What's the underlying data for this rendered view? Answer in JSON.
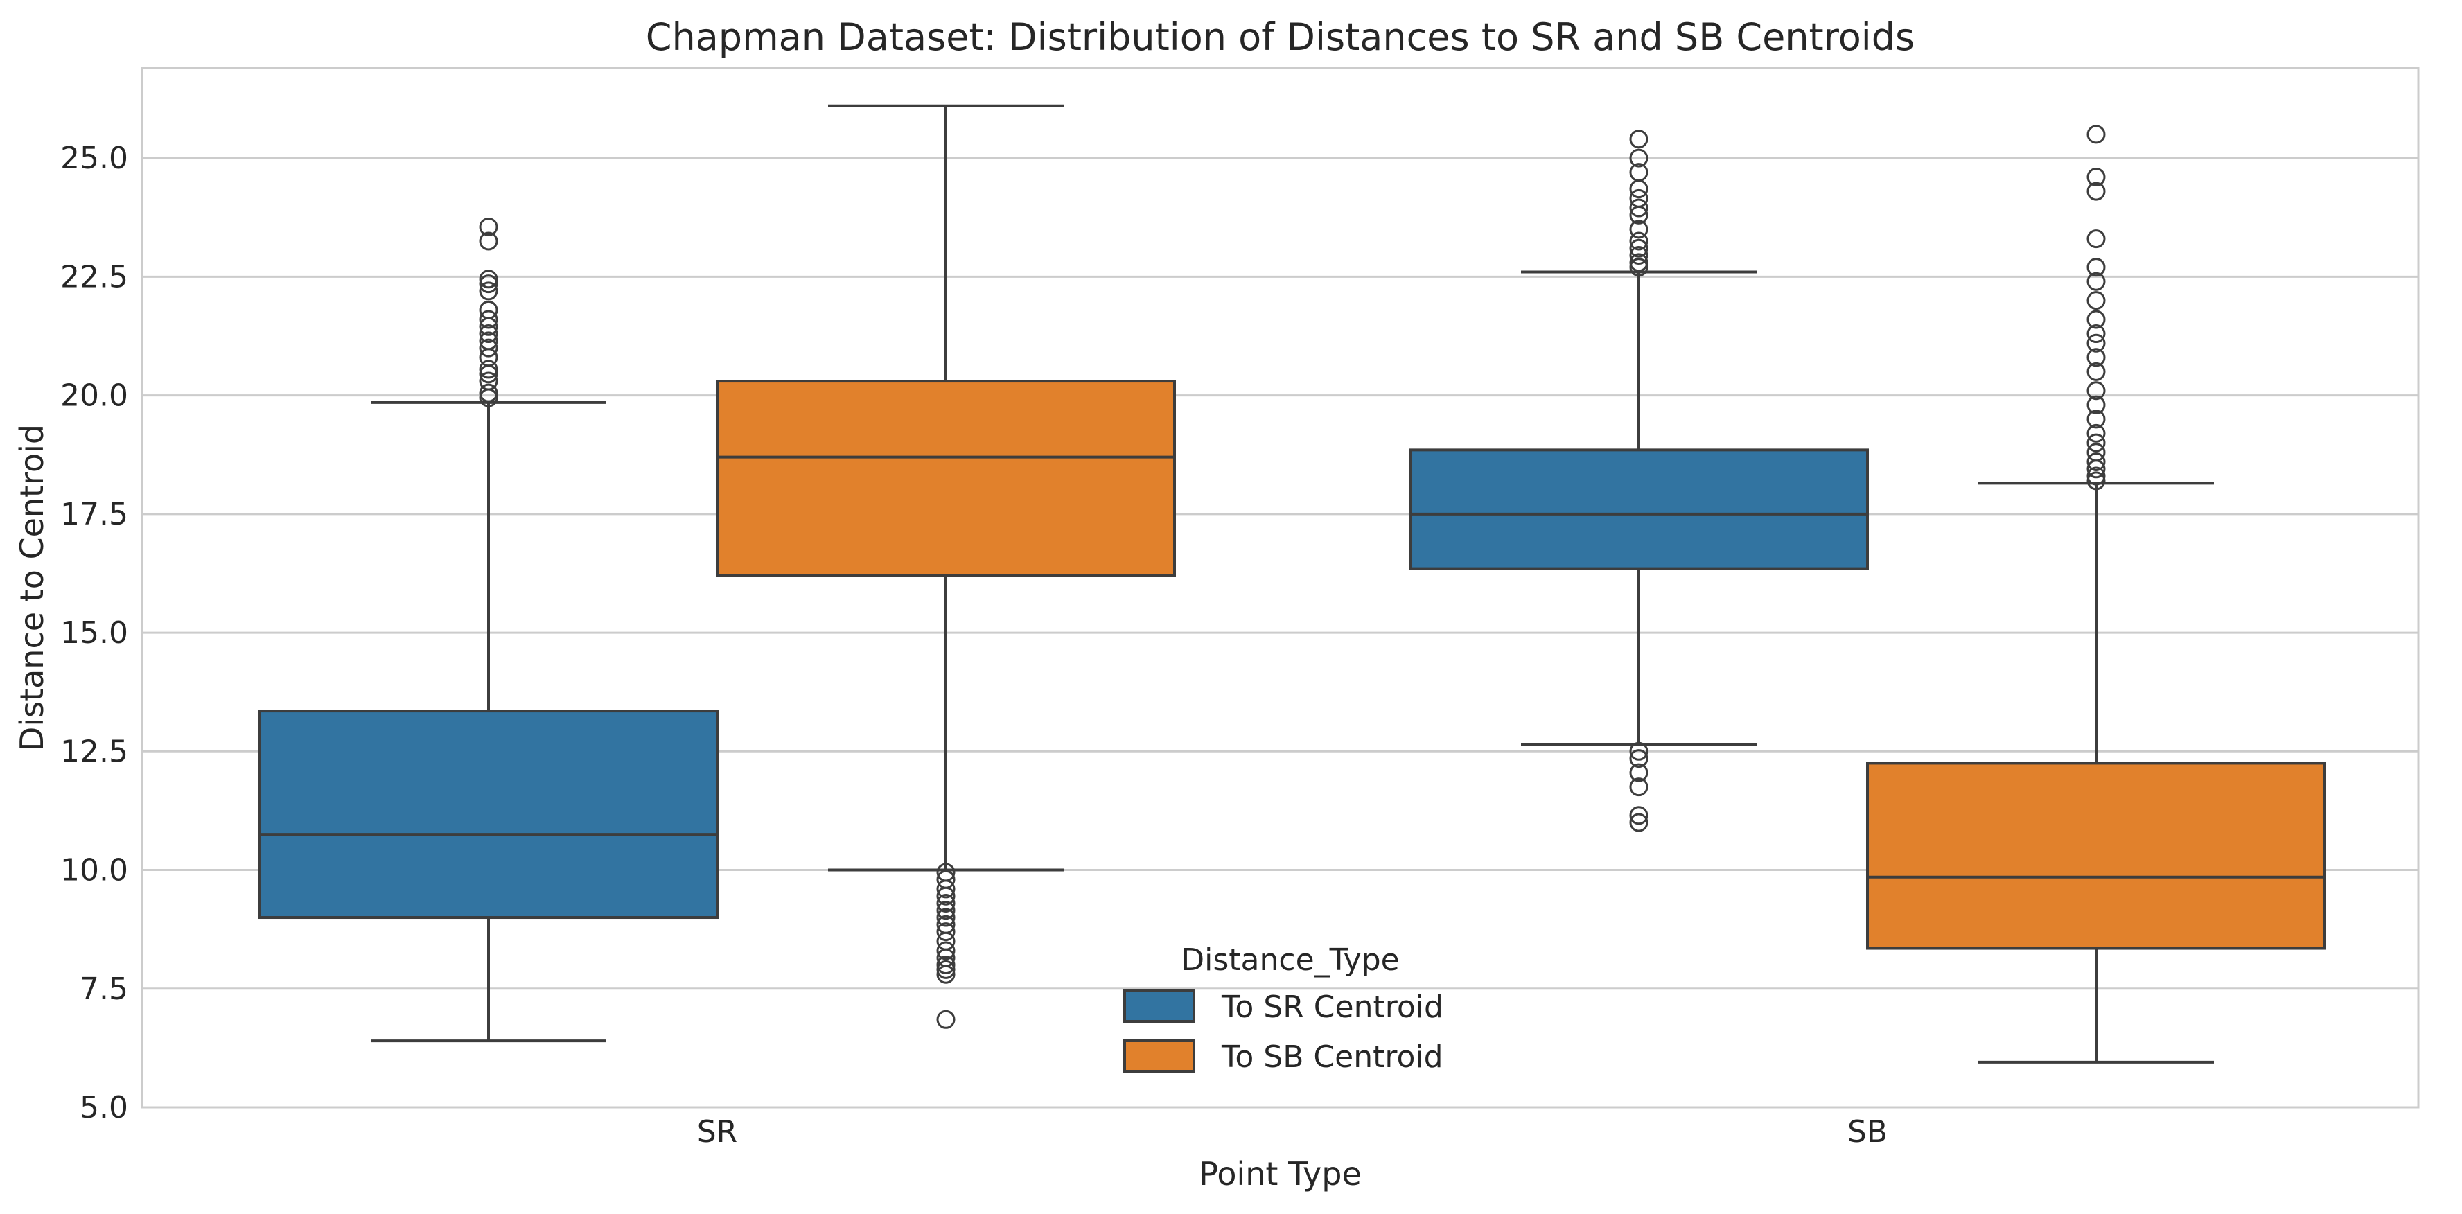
{
  "chart_data": {
    "type": "box",
    "title": "Chapman Dataset: Distribution of Distances to SR and SB Centroids",
    "xlabel": "Point Type",
    "ylabel": "Distance to Centroid",
    "ylim": [
      5.0,
      26.9
    ],
    "yticks": [
      "5.0",
      "7.5",
      "10.0",
      "12.5",
      "15.0",
      "17.5",
      "20.0",
      "22.5",
      "25.0"
    ],
    "categories": [
      "SR",
      "SB"
    ],
    "grid": "horizontal",
    "legend": {
      "title": "Distance_Type",
      "placement": "lower-center"
    },
    "series": [
      {
        "name": "To SR Centroid",
        "color": "#3274a1",
        "boxes": [
          {
            "category": "SR",
            "whislo": 6.4,
            "q1": 9.0,
            "med": 10.75,
            "q3": 13.35,
            "whishi": 19.85,
            "fliers": [
              19.95,
              20.05,
              20.3,
              20.45,
              20.55,
              20.8,
              21.0,
              21.15,
              21.3,
              21.45,
              21.6,
              21.8,
              22.2,
              22.35,
              22.45,
              23.25,
              23.55
            ]
          },
          {
            "category": "SB",
            "whislo": 12.65,
            "q1": 16.35,
            "med": 17.5,
            "q3": 18.85,
            "whishi": 22.6,
            "fliers": [
              22.7,
              22.8,
              22.95,
              23.1,
              23.25,
              23.5,
              23.8,
              23.95,
              24.15,
              24.35,
              24.7,
              25.0,
              25.4,
              12.5,
              12.35,
              12.05,
              11.75,
              11.15,
              11.0
            ]
          }
        ]
      },
      {
        "name": "To SB Centroid",
        "color": "#e1812c",
        "boxes": [
          {
            "category": "SR",
            "whislo": 10.0,
            "q1": 16.2,
            "med": 18.7,
            "q3": 20.3,
            "whishi": 26.1,
            "fliers": [
              9.95,
              9.8,
              9.6,
              9.45,
              9.3,
              9.15,
              9.0,
              8.85,
              8.7,
              8.5,
              8.3,
              8.15,
              8.0,
              7.9,
              7.8,
              6.85
            ]
          },
          {
            "category": "SB",
            "whislo": 5.95,
            "q1": 8.35,
            "med": 9.85,
            "q3": 12.25,
            "whishi": 18.15,
            "fliers": [
              18.2,
              18.3,
              18.45,
              18.6,
              18.8,
              19.0,
              19.2,
              19.5,
              19.8,
              20.1,
              20.5,
              20.8,
              21.1,
              21.3,
              21.6,
              22.0,
              22.4,
              22.7,
              23.3,
              24.3,
              24.6,
              25.5
            ]
          }
        ]
      }
    ]
  }
}
